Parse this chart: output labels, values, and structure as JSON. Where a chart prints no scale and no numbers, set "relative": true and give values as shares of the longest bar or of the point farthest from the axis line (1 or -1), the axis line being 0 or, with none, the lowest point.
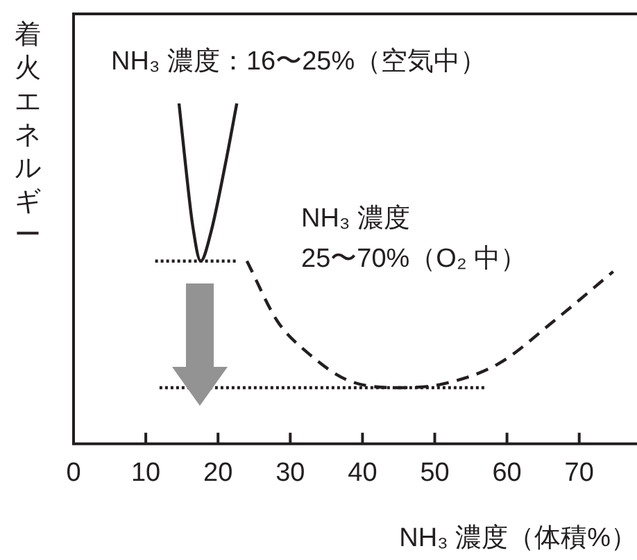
{
  "chart_data": {
    "type": "line",
    "relative": true,
    "xlabel": "NH₃ 濃度（体積%）",
    "ylabel": "着火エネルギー",
    "xlim": [
      0,
      78
    ],
    "xticks": [
      0,
      10,
      20,
      30,
      40,
      50,
      60,
      70
    ],
    "grid": false,
    "legend": false,
    "annotations": [
      "NH₃ 濃度：16〜25%（空気中）",
      "NH₃ 濃度\n25〜70%（O₂ 中）"
    ],
    "series": [
      {
        "color": "#231f20",
        "line_style": "solid",
        "x": [
          14.6,
          15.5,
          16.5,
          17.6,
          19,
          21,
          22.6
        ],
        "values": [
          1,
          0.82,
          0.64,
          0.537,
          0.62,
          0.82,
          1
        ]
      },
      {
        "color": "#231f20",
        "line_style": "dashed",
        "x": [
          24,
          28.2,
          32,
          38.3,
          45.4,
          51.1,
          58.8,
          66.5,
          74.7
        ],
        "values": [
          0.537,
          0.361,
          0.275,
          0.184,
          0.165,
          0.176,
          0.235,
          0.361,
          0.506
        ]
      },
      {
        "color": "#231f20",
        "line_style": "dotted",
        "x": [
          11.3,
          22.6
        ],
        "values": [
          0.537,
          0.537
        ]
      },
      {
        "color": "#231f20",
        "line_style": "dotted",
        "x": [
          11.9,
          57
        ],
        "values": [
          0.165,
          0.165
        ]
      }
    ]
  }
}
